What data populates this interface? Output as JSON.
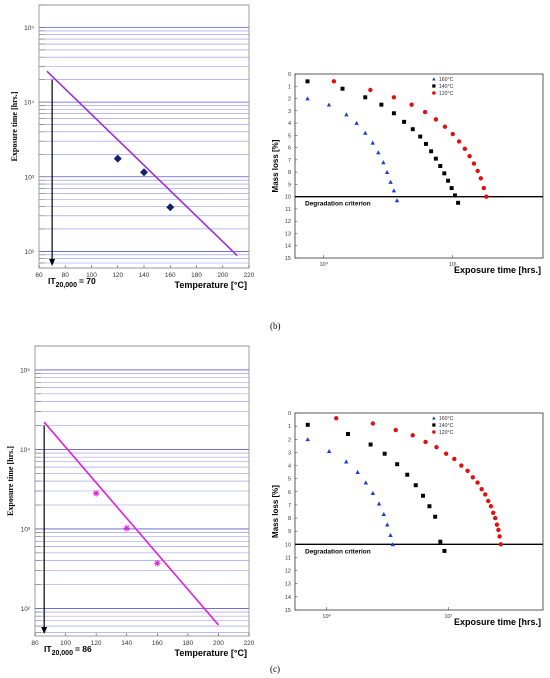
{
  "panel_labels": [
    "(b)",
    "(c)"
  ],
  "chart_data": [
    {
      "id": "b-left",
      "type": "line",
      "title": "",
      "xlabel": "Temperature [°C]",
      "ylabel": "Exposure time [hrs.]",
      "xlim": [
        60,
        220
      ],
      "ylim_log": [
        60,
        200000
      ],
      "log_y": true,
      "grid": "horizontal",
      "x_ticks": [
        "60",
        "80",
        "100",
        "120",
        "140",
        "160",
        "180",
        "200",
        "220"
      ],
      "y_tick_labels": [
        "10²",
        "10³",
        "10⁴",
        "10⁵"
      ],
      "y_tick_values": [
        100,
        1000,
        10000,
        100000
      ],
      "line_color": "#9b30d8",
      "marker_color": "#10206e",
      "marker": "diamond",
      "points": [
        {
          "x": 120,
          "y": 1750
        },
        {
          "x": 140,
          "y": 1150
        },
        {
          "x": 160,
          "y": 390
        }
      ],
      "fit_line": [
        {
          "x": 66,
          "y": 26000
        },
        {
          "x": 211,
          "y": 88
        }
      ],
      "annotation": {
        "text": "IT",
        "subscript": "20,000",
        "suffix": "= 70",
        "x": 70,
        "y": 20000
      }
    },
    {
      "id": "b-right",
      "type": "scatter",
      "title": "",
      "xlabel": "Exposure time [hrs.]",
      "ylabel": "Mass loss [%]",
      "log_x": true,
      "xlim_log": [
        0.6,
        50
      ],
      "x_tick_labels": [
        "10⁰",
        "10¹"
      ],
      "x_tick_values": [
        1,
        10
      ],
      "ylim": [
        0,
        15
      ],
      "y_ticks": [
        "0",
        "1",
        "2",
        "3",
        "4",
        "5",
        "6",
        "7",
        "8",
        "9",
        "10",
        "11",
        "12",
        "13",
        "14",
        "15"
      ],
      "y_inverted": true,
      "criterion": {
        "label": "Degradation criterion",
        "y": 10
      },
      "legend_position": "top-right",
      "series": [
        {
          "name": "160°C",
          "color": "#1a3fd6",
          "marker": "triangle",
          "x": [
            0.75,
            1.1,
            1.5,
            1.8,
            2.1,
            2.4,
            2.65,
            2.9,
            3.1,
            3.3,
            3.5,
            3.7
          ],
          "y": [
            2,
            2.5,
            3.3,
            4.0,
            4.8,
            5.6,
            6.4,
            7.2,
            8.0,
            8.8,
            9.5,
            10.3
          ]
        },
        {
          "name": "140°C",
          "color": "#000000",
          "marker": "square",
          "x": [
            0.75,
            1.4,
            2.1,
            2.8,
            3.5,
            4.2,
            4.9,
            5.6,
            6.2,
            6.8,
            7.4,
            8.0,
            8.6,
            9.2,
            9.8,
            10.4,
            11
          ],
          "y": [
            0.6,
            1.2,
            1.9,
            2.5,
            3.2,
            3.9,
            4.5,
            5.1,
            5.7,
            6.3,
            6.9,
            7.5,
            8.1,
            8.7,
            9.3,
            9.9,
            10.5
          ]
        },
        {
          "name": "120°C",
          "color": "#e01010",
          "marker": "circle",
          "x": [
            1.2,
            2.3,
            3.5,
            4.8,
            6.1,
            7.4,
            8.7,
            10,
            11.2,
            12.4,
            13.5,
            14.6,
            15.6,
            16.5,
            17.4,
            18.2
          ],
          "y": [
            0.6,
            1.3,
            1.9,
            2.5,
            3.1,
            3.7,
            4.3,
            4.9,
            5.5,
            6.1,
            6.7,
            7.3,
            7.9,
            8.5,
            9.3,
            10
          ]
        }
      ]
    },
    {
      "id": "c-left",
      "type": "line",
      "title": "",
      "xlabel": "Temperature [°C]",
      "ylabel": "Exposure time [hrs.]",
      "xlim": [
        80,
        220
      ],
      "ylim_log": [
        45,
        200000
      ],
      "log_y": true,
      "grid": "horizontal",
      "x_ticks": [
        "80",
        "100",
        "120",
        "140",
        "160",
        "180",
        "200",
        "220"
      ],
      "y_tick_labels": [
        "10²",
        "10³",
        "10⁴",
        "10⁵"
      ],
      "y_tick_values": [
        100,
        1000,
        10000,
        100000
      ],
      "line_color": "#e020d8",
      "marker_color": "#e020d8",
      "marker": "star",
      "points": [
        {
          "x": 120,
          "y": 2800
        },
        {
          "x": 140,
          "y": 1020
        },
        {
          "x": 160,
          "y": 370
        }
      ],
      "fit_line": [
        {
          "x": 86,
          "y": 22000
        },
        {
          "x": 200,
          "y": 62
        }
      ],
      "annotation": {
        "text": "IT",
        "subscript": "20,000",
        "suffix": "= 86",
        "x": 86,
        "y": 20000
      }
    },
    {
      "id": "c-right",
      "type": "scatter",
      "title": "",
      "xlabel": "Exposure time [hrs.]",
      "ylabel": "Mass loss [%]",
      "log_x": true,
      "xlim_log": [
        0.55,
        60
      ],
      "x_tick_labels": [
        "10⁰",
        "10¹"
      ],
      "x_tick_values": [
        1,
        10
      ],
      "ylim": [
        0,
        15
      ],
      "y_ticks": [
        "0",
        "1",
        "2",
        "3",
        "4",
        "5",
        "6",
        "7",
        "8",
        "9",
        "10",
        "11",
        "12",
        "13",
        "14",
        "15"
      ],
      "y_inverted": true,
      "criterion": {
        "label": "Degradation criterion",
        "y": 10
      },
      "legend_position": "top-right",
      "series": [
        {
          "name": "160°C",
          "color": "#1a3fd6",
          "marker": "triangle",
          "x": [
            0.7,
            1.05,
            1.45,
            1.8,
            2.1,
            2.4,
            2.7,
            2.95,
            3.15,
            3.35,
            3.5
          ],
          "y": [
            2,
            2.9,
            3.7,
            4.5,
            5.3,
            6.1,
            6.9,
            7.7,
            8.5,
            9.3,
            10
          ]
        },
        {
          "name": "140°C",
          "color": "#000000",
          "marker": "square",
          "x": [
            0.7,
            1.5,
            2.3,
            3.0,
            3.8,
            4.6,
            5.4,
            6.2,
            7.0,
            7.8,
            8.6,
            9.3
          ],
          "y": [
            0.9,
            1.6,
            2.4,
            3.1,
            3.9,
            4.7,
            5.5,
            6.3,
            7.1,
            7.9,
            9.8,
            10.5
          ]
        },
        {
          "name": "120°C",
          "color": "#e01010",
          "marker": "circle",
          "x": [
            1.2,
            2.4,
            3.7,
            5.1,
            6.5,
            8.0,
            9.6,
            11.2,
            12.8,
            14.4,
            15.9,
            17.4,
            18.8,
            20.1,
            21.3,
            22.4,
            23.4,
            24.3,
            25.1,
            25.8,
            26.4,
            27.0
          ],
          "y": [
            0.4,
            0.8,
            1.3,
            1.7,
            2.2,
            2.6,
            3.1,
            3.5,
            4.0,
            4.4,
            4.9,
            5.3,
            5.8,
            6.2,
            6.7,
            7.1,
            7.6,
            8.0,
            8.5,
            8.9,
            9.4,
            10
          ]
        }
      ]
    }
  ]
}
